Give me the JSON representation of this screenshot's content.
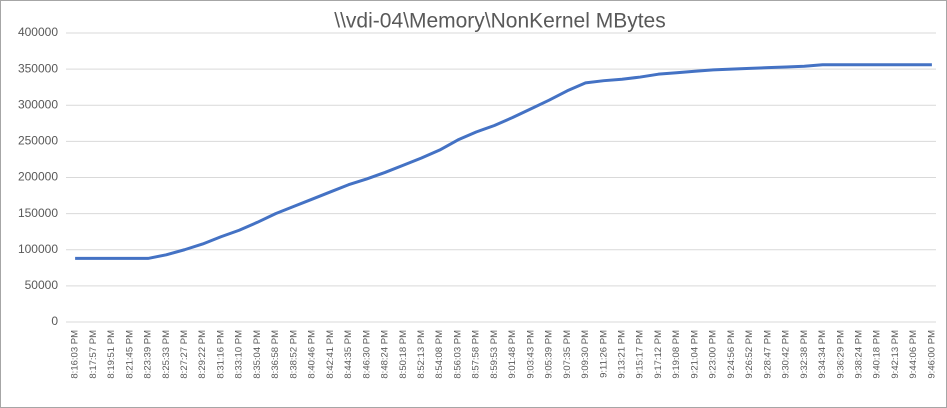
{
  "chart_data": {
    "type": "line",
    "title": "\\\\vdi-04\\Memory\\NonKernel MBytes",
    "categories": [
      "8:16:03 PM",
      "8:17:57 PM",
      "8:19:51 PM",
      "8:21:45 PM",
      "8:23:39 PM",
      "8:25:33 PM",
      "8:27:27 PM",
      "8:29:22 PM",
      "8:31:16 PM",
      "8:33:10 PM",
      "8:35:04 PM",
      "8:36:58 PM",
      "8:38:52 PM",
      "8:40:46 PM",
      "8:42:41 PM",
      "8:44:35 PM",
      "8:46:30 PM",
      "8:48:24 PM",
      "8:50:18 PM",
      "8:52:13 PM",
      "8:54:08 PM",
      "8:56:03 PM",
      "8:57:58 PM",
      "8:59:53 PM",
      "9:01:48 PM",
      "9:03:43 PM",
      "9:05:39 PM",
      "9:07:35 PM",
      "9:09:30 PM",
      "9:11:26 PM",
      "9:13:21 PM",
      "9:15:17 PM",
      "9:17:12 PM",
      "9:19:08 PM",
      "9:21:04 PM",
      "9:23:00 PM",
      "9:24:56 PM",
      "9:26:52 PM",
      "9:28:47 PM",
      "9:30:42 PM",
      "9:32:38 PM",
      "9:34:34 PM",
      "9:36:29 PM",
      "9:38:24 PM",
      "9:40:18 PM",
      "9:42:13 PM",
      "9:44:06 PM",
      "9:46:00 PM"
    ],
    "series": [
      {
        "name": "\\\\vdi-04\\Memory\\NonKernel MBytes",
        "color": "#4472c4",
        "values": [
          88000,
          88000,
          88000,
          88000,
          88000,
          93000,
          100000,
          108000,
          118000,
          127000,
          138000,
          150000,
          160000,
          170000,
          180000,
          190000,
          198000,
          207000,
          217000,
          227000,
          238000,
          252000,
          263000,
          272000,
          283000,
          295000,
          307000,
          320000,
          331000,
          334000,
          336000,
          339000,
          343000,
          345000,
          347000,
          349000,
          350000,
          351000,
          352000,
          353000,
          354000,
          356000,
          356000,
          356000,
          356000,
          356000,
          356000,
          356000
        ]
      }
    ],
    "ylim": [
      0,
      400000
    ],
    "yticks": [
      0,
      50000,
      100000,
      150000,
      200000,
      250000,
      300000,
      350000,
      400000
    ],
    "grid": true
  }
}
